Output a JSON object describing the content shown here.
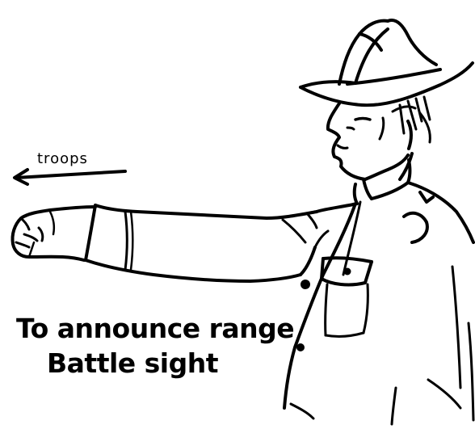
{
  "direction_label": "troops",
  "caption": {
    "line1": "To announce range",
    "line2": "Battle sight"
  },
  "figure": {
    "subject": "signaling-soldier",
    "ink_color": "#000000",
    "paper_color": "#ffffff"
  }
}
